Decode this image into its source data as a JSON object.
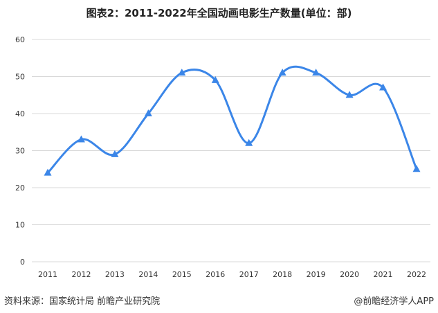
{
  "chart_data": {
    "type": "line",
    "title": "图表2：2011-2022年全国动画电影生产数量(单位：部)",
    "categories": [
      "2011",
      "2012",
      "2013",
      "2014",
      "2015",
      "2016",
      "2017",
      "2018",
      "2019",
      "2020",
      "2021",
      "2022"
    ],
    "series": [
      {
        "values": [
          24,
          33,
          29,
          40,
          51,
          49,
          32,
          51,
          51,
          45,
          47,
          25
        ]
      }
    ],
    "ylim": [
      0,
      60
    ],
    "yticks": [
      0,
      10,
      20,
      30,
      40,
      50,
      60
    ],
    "grid": true,
    "smooth": true,
    "marker": "triangle",
    "line_color": "#3b86e8"
  },
  "footer": {
    "source": "资料来源：国家统计局 前瞻产业研究院",
    "credit": "@前瞻经济学人APP"
  },
  "watermark": "前瞻产业研究院"
}
